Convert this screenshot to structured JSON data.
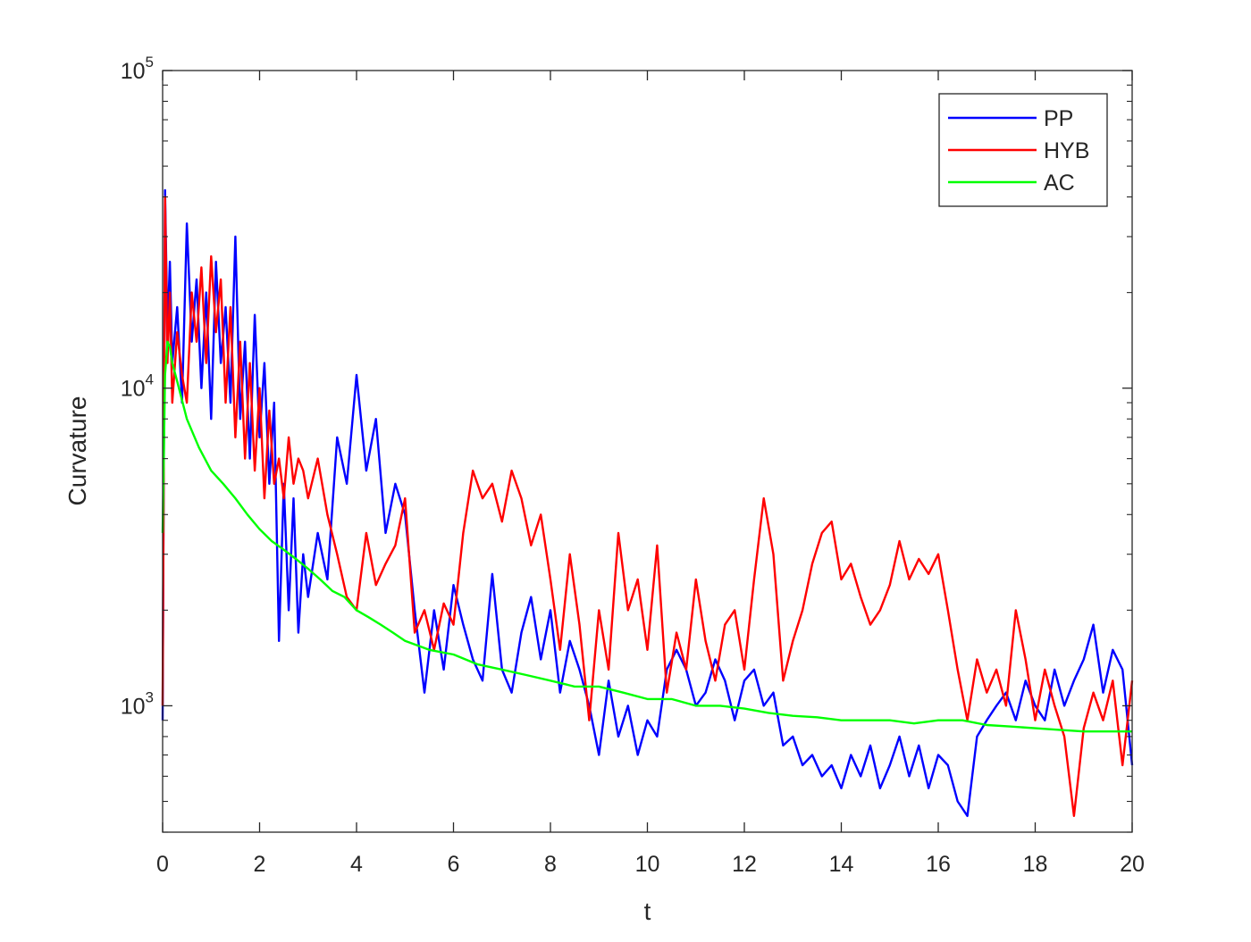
{
  "chart_data": {
    "type": "line",
    "xlabel": "t",
    "ylabel": "Curvature",
    "xlim": [
      0,
      20
    ],
    "ylim": [
      400,
      100000
    ],
    "yscale": "log",
    "grid": false,
    "legend_position": "top-right",
    "x_ticks": [
      "0",
      "2",
      "4",
      "6",
      "8",
      "10",
      "12",
      "14",
      "16",
      "18",
      "20"
    ],
    "y_ticks": [
      {
        "value": 1000,
        "base": "10",
        "exp": "3"
      },
      {
        "value": 10000,
        "base": "10",
        "exp": "4"
      },
      {
        "value": 100000,
        "base": "10",
        "exp": "5"
      }
    ],
    "series": [
      {
        "name": "PP",
        "color": "#0000ff",
        "x": [
          0,
          0.05,
          0.1,
          0.15,
          0.2,
          0.3,
          0.4,
          0.5,
          0.6,
          0.7,
          0.8,
          0.9,
          1.0,
          1.1,
          1.2,
          1.3,
          1.4,
          1.5,
          1.6,
          1.7,
          1.8,
          1.9,
          2.0,
          2.1,
          2.2,
          2.3,
          2.4,
          2.5,
          2.6,
          2.7,
          2.8,
          2.9,
          3.0,
          3.2,
          3.4,
          3.6,
          3.8,
          4.0,
          4.2,
          4.4,
          4.6,
          4.8,
          5.0,
          5.2,
          5.4,
          5.6,
          5.8,
          6.0,
          6.2,
          6.4,
          6.6,
          6.8,
          7.0,
          7.2,
          7.4,
          7.6,
          7.8,
          8.0,
          8.2,
          8.4,
          8.6,
          8.8,
          9.0,
          9.2,
          9.4,
          9.6,
          9.8,
          10.0,
          10.2,
          10.4,
          10.6,
          10.8,
          11.0,
          11.2,
          11.4,
          11.6,
          11.8,
          12.0,
          12.2,
          12.4,
          12.6,
          12.8,
          13.0,
          13.2,
          13.4,
          13.6,
          13.8,
          14.0,
          14.2,
          14.4,
          14.6,
          14.8,
          15.0,
          15.2,
          15.4,
          15.6,
          15.8,
          16.0,
          16.2,
          16.4,
          16.6,
          16.8,
          17.0,
          17.2,
          17.4,
          17.6,
          17.8,
          18.0,
          18.2,
          18.4,
          18.6,
          18.8,
          19.0,
          19.2,
          19.4,
          19.6,
          19.8,
          20.0
        ],
        "y": [
          900,
          42000,
          15000,
          25000,
          12000,
          18000,
          9000,
          33000,
          14000,
          22000,
          10000,
          20000,
          8000,
          25000,
          12000,
          18000,
          9000,
          30000,
          8000,
          14000,
          6000,
          17000,
          7000,
          12000,
          5000,
          9000,
          1600,
          5000,
          2000,
          4500,
          1700,
          3000,
          2200,
          3500,
          2500,
          7000,
          5000,
          11000,
          5500,
          8000,
          3500,
          5000,
          4000,
          2000,
          1100,
          2000,
          1300,
          2400,
          1800,
          1400,
          1200,
          2600,
          1300,
          1100,
          1700,
          2200,
          1400,
          2000,
          1100,
          1600,
          1300,
          1000,
          700,
          1200,
          800,
          1000,
          700,
          900,
          800,
          1300,
          1500,
          1300,
          1000,
          1100,
          1400,
          1200,
          900,
          1200,
          1300,
          1000,
          1100,
          750,
          800,
          650,
          700,
          600,
          650,
          550,
          700,
          600,
          750,
          550,
          650,
          800,
          600,
          750,
          550,
          700,
          650,
          500,
          450,
          800,
          900,
          1000,
          1100,
          900,
          1200,
          1000,
          900,
          1300,
          1000,
          1200,
          1400,
          1800,
          1100,
          1500,
          1300,
          650
        ]
      },
      {
        "name": "HYB",
        "color": "#ff0000",
        "x": [
          0,
          0.05,
          0.1,
          0.15,
          0.2,
          0.3,
          0.4,
          0.5,
          0.6,
          0.7,
          0.8,
          0.9,
          1.0,
          1.1,
          1.2,
          1.3,
          1.4,
          1.5,
          1.6,
          1.7,
          1.8,
          1.9,
          2.0,
          2.1,
          2.2,
          2.3,
          2.4,
          2.5,
          2.6,
          2.7,
          2.8,
          2.9,
          3.0,
          3.2,
          3.4,
          3.6,
          3.8,
          4.0,
          4.2,
          4.4,
          4.6,
          4.8,
          5.0,
          5.2,
          5.4,
          5.6,
          5.8,
          6.0,
          6.2,
          6.4,
          6.6,
          6.8,
          7.0,
          7.2,
          7.4,
          7.6,
          7.8,
          8.0,
          8.2,
          8.4,
          8.6,
          8.8,
          9.0,
          9.2,
          9.4,
          9.6,
          9.8,
          10.0,
          10.2,
          10.4,
          10.6,
          10.8,
          11.0,
          11.2,
          11.4,
          11.6,
          11.8,
          12.0,
          12.2,
          12.4,
          12.6,
          12.8,
          13.0,
          13.2,
          13.4,
          13.6,
          13.8,
          14.0,
          14.2,
          14.4,
          14.6,
          14.8,
          15.0,
          15.2,
          15.4,
          15.6,
          15.8,
          16.0,
          16.2,
          16.4,
          16.6,
          16.8,
          17.0,
          17.2,
          17.4,
          17.6,
          17.8,
          18.0,
          18.2,
          18.4,
          18.6,
          18.8,
          19.0,
          19.2,
          19.4,
          19.6,
          19.8,
          20.0
        ],
        "y": [
          1000,
          40000,
          12000,
          20000,
          9000,
          15000,
          11000,
          9000,
          20000,
          14000,
          24000,
          12000,
          26000,
          15000,
          22000,
          9000,
          18000,
          7000,
          14000,
          6000,
          12000,
          5500,
          10000,
          4500,
          8500,
          5000,
          6000,
          4500,
          7000,
          5000,
          6000,
          5500,
          4500,
          6000,
          4000,
          3000,
          2200,
          2000,
          3500,
          2400,
          2800,
          3200,
          4500,
          1700,
          2000,
          1500,
          2100,
          1800,
          3500,
          5500,
          4500,
          5000,
          3800,
          5500,
          4500,
          3200,
          4000,
          2500,
          1500,
          3000,
          1800,
          900,
          2000,
          1300,
          3500,
          2000,
          2500,
          1500,
          3200,
          1100,
          1700,
          1300,
          2500,
          1600,
          1200,
          1800,
          2000,
          1300,
          2500,
          4500,
          3000,
          1200,
          1600,
          2000,
          2800,
          3500,
          3800,
          2500,
          2800,
          2200,
          1800,
          2000,
          2400,
          3300,
          2500,
          2900,
          2600,
          3000,
          2000,
          1300,
          900,
          1400,
          1100,
          1300,
          1000,
          2000,
          1400,
          900,
          1300,
          1000,
          800,
          450,
          850,
          1100,
          900,
          1200,
          650,
          1200
        ]
      },
      {
        "name": "AC",
        "color": "#00ff00",
        "x": [
          0,
          0.05,
          0.1,
          0.15,
          0.2,
          0.3,
          0.5,
          0.75,
          1.0,
          1.25,
          1.5,
          1.75,
          2.0,
          2.25,
          2.5,
          2.75,
          3.0,
          3.25,
          3.5,
          3.75,
          4.0,
          4.25,
          4.5,
          4.75,
          5.0,
          5.5,
          6.0,
          6.5,
          7.0,
          7.5,
          8.0,
          8.5,
          9.0,
          9.5,
          10.0,
          10.5,
          11.0,
          11.5,
          12.0,
          12.5,
          13.0,
          13.5,
          14.0,
          14.5,
          15.0,
          15.5,
          16.0,
          16.5,
          17.0,
          17.5,
          18.0,
          18.5,
          19.0,
          19.5,
          20.0
        ],
        "y": [
          3500,
          11000,
          14000,
          13500,
          12000,
          10500,
          8000,
          6500,
          5500,
          5000,
          4500,
          4000,
          3600,
          3300,
          3100,
          2900,
          2700,
          2500,
          2300,
          2200,
          2000,
          1900,
          1800,
          1700,
          1600,
          1500,
          1450,
          1350,
          1300,
          1250,
          1200,
          1150,
          1150,
          1100,
          1050,
          1050,
          1000,
          1000,
          980,
          950,
          930,
          920,
          900,
          900,
          900,
          880,
          900,
          900,
          870,
          860,
          850,
          840,
          830,
          830,
          830
        ]
      }
    ]
  }
}
